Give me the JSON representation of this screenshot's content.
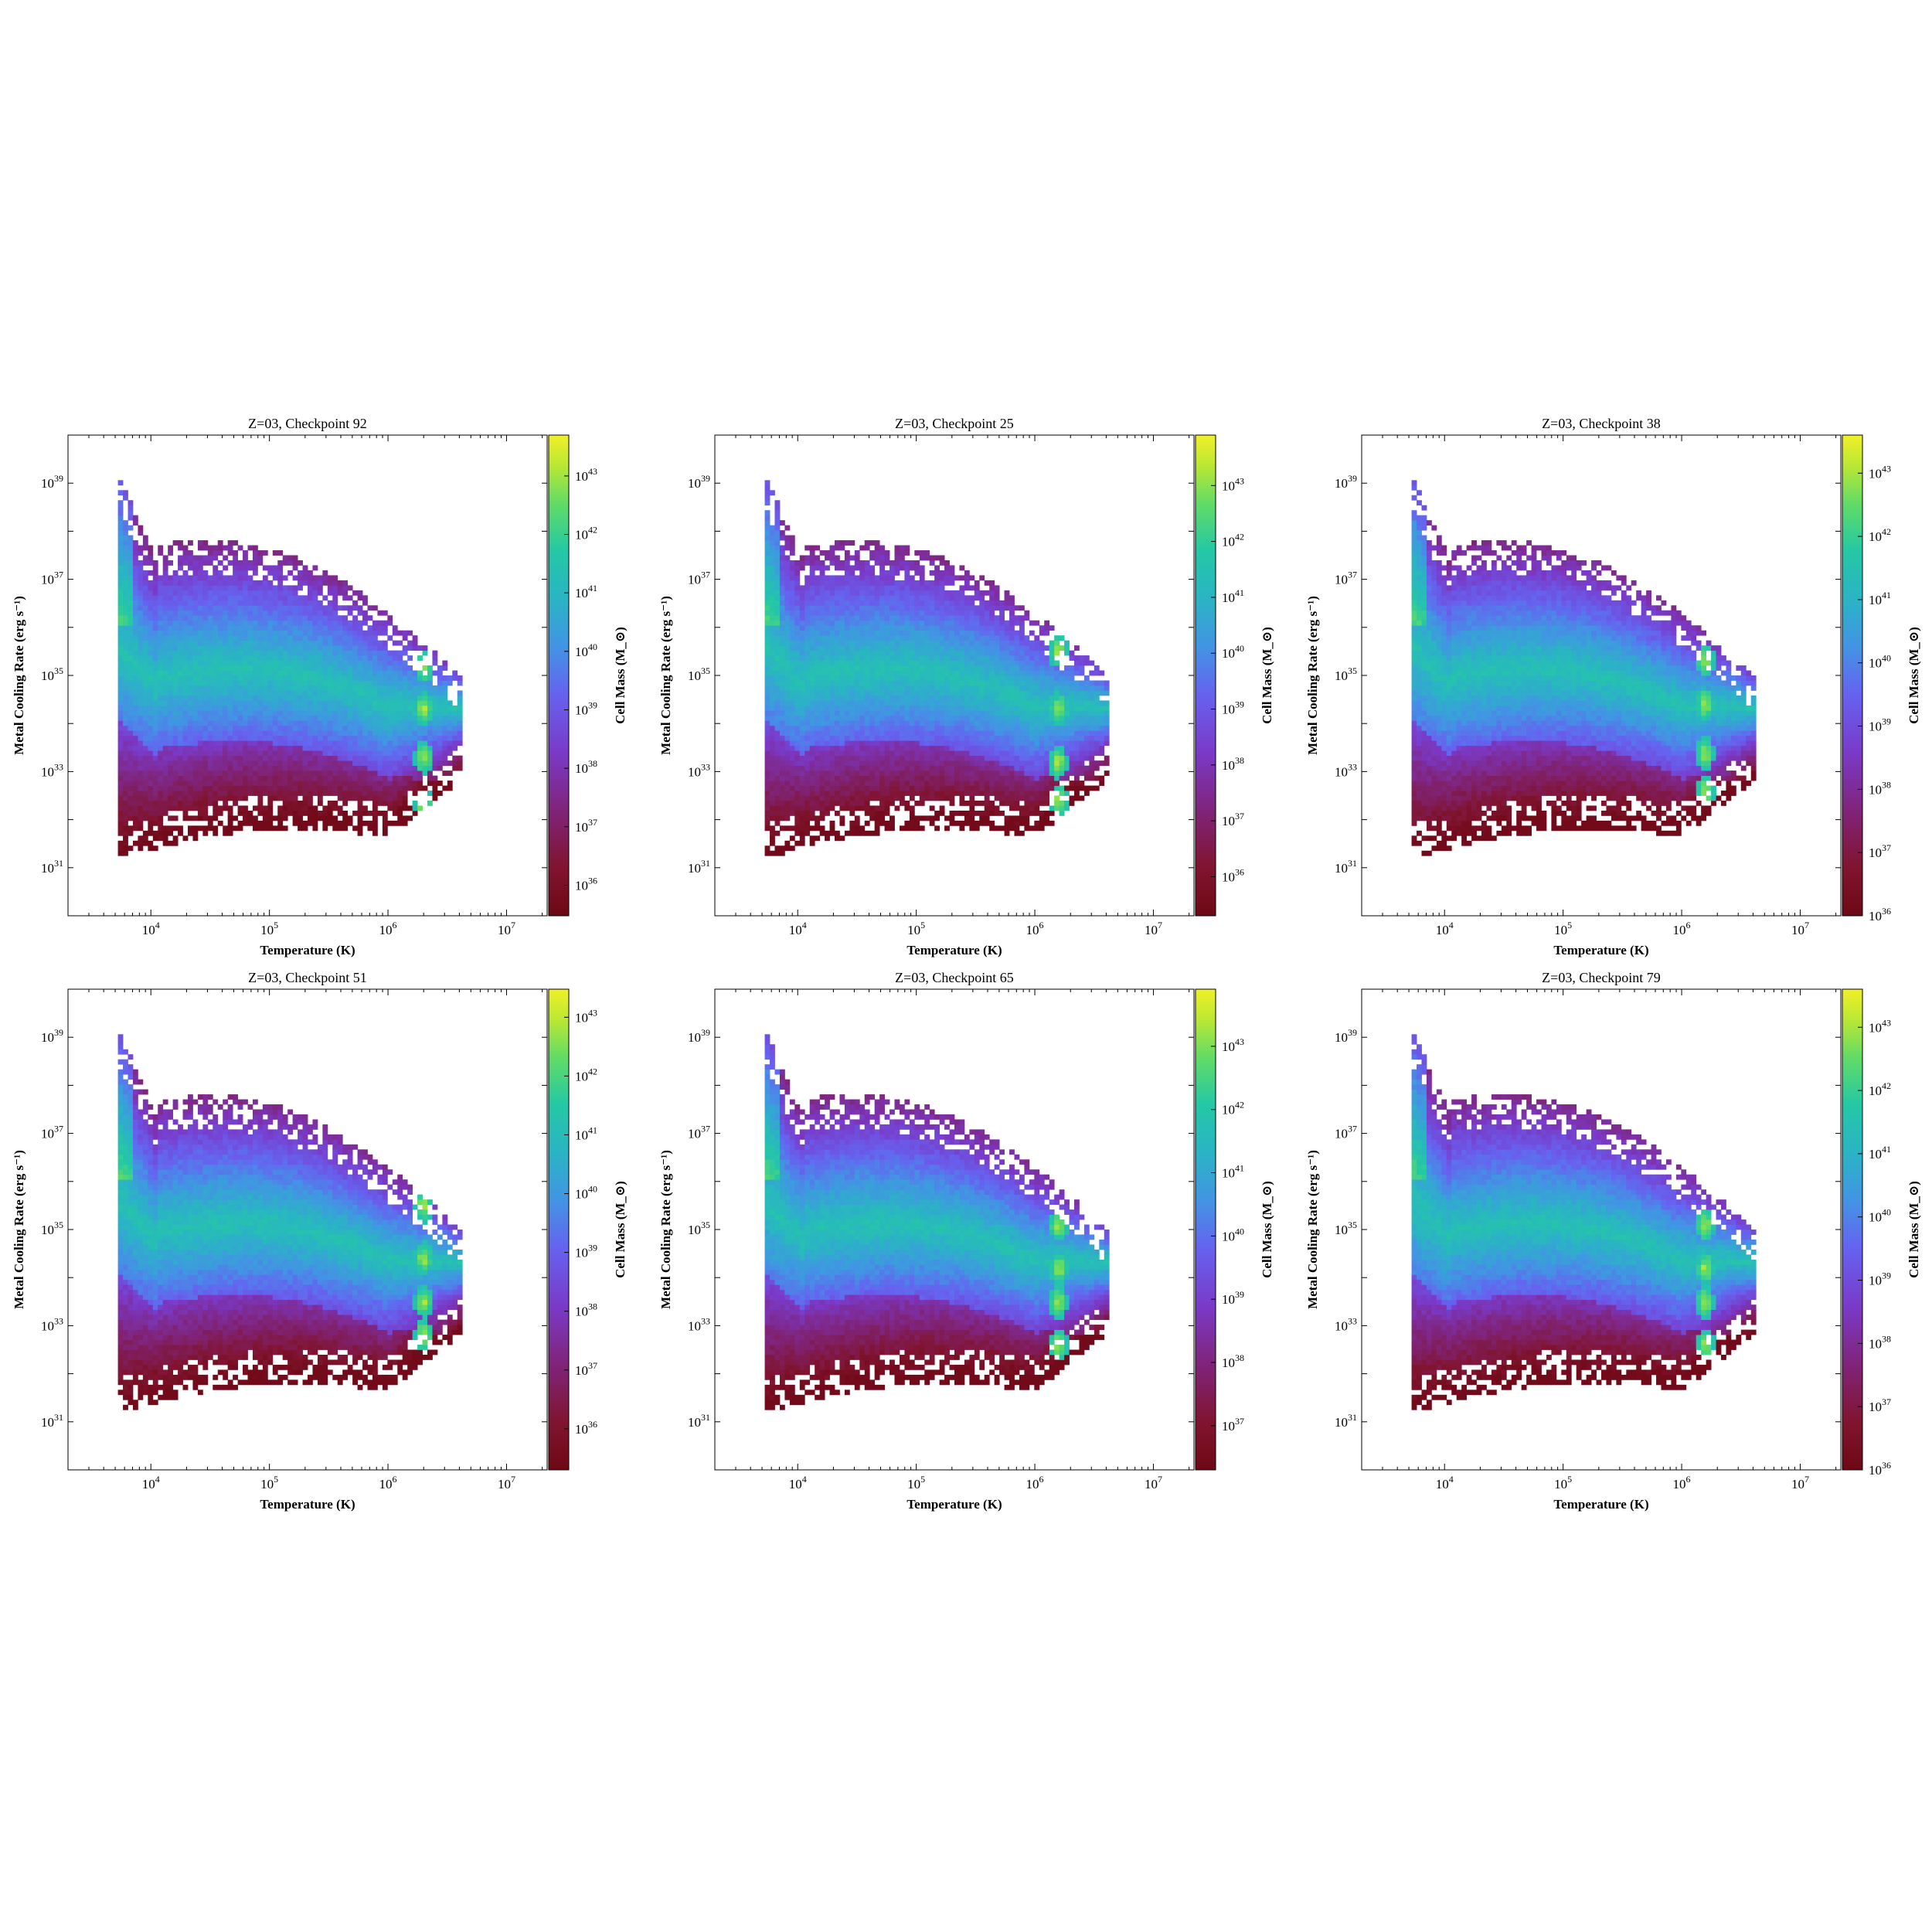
{
  "figure": {
    "xlabel": "Temperature (K)",
    "ylabel": "Metal Cooling Rate (erg s⁻¹)",
    "colorbar_label": "Cell Mass (M_⊙)"
  },
  "chart_data": [
    {
      "type": "heatmap",
      "title": "Z=03, Checkpoint 92",
      "xlabel": "Temperature (K)",
      "ylabel": "Metal Cooling Rate (erg s⁻¹)",
      "colorbar_label": "Cell Mass (M_⊙)",
      "x_scale": "log",
      "y_scale": "log",
      "xlim": [
        2000,
        22000000
      ],
      "ylim": [
        1e+30,
        1e+40
      ],
      "x_ticks": [
        10000,
        100000,
        1000000,
        10000000
      ],
      "y_ticks": [
        1e+31,
        1e+33,
        1e+35,
        1e+37,
        1e+39
      ],
      "colorbar_range": [
        3e+35,
        5e+43
      ],
      "colorbar_ticks": [
        1e+36,
        1e+37,
        1e+38,
        1e+39,
        1e+40,
        1e+41,
        1e+42,
        1e+43
      ],
      "colormap": "viridis extended into magenta/dark red",
      "blobs_at_logT_6_3": [
        35.2,
        34.3,
        33.3,
        32.3
      ]
    },
    {
      "type": "heatmap",
      "title": "Z=03, Checkpoint 25",
      "xlabel": "Temperature (K)",
      "ylabel": "Metal Cooling Rate (erg s⁻¹)",
      "colorbar_label": "Cell Mass (M_⊙)",
      "x_scale": "log",
      "y_scale": "log",
      "xlim": [
        2000,
        22000000
      ],
      "ylim": [
        1e+30,
        1e+40
      ],
      "x_ticks": [
        10000,
        100000,
        1000000,
        10000000
      ],
      "y_ticks": [
        1e+31,
        1e+33,
        1e+35,
        1e+37,
        1e+39
      ],
      "colorbar_range": [
        2e+35,
        8e+43
      ],
      "colorbar_ticks": [
        1e+36,
        1e+37,
        1e+38,
        1e+39,
        1e+40,
        1e+41,
        1e+42,
        1e+43
      ],
      "colormap": "viridis extended into magenta/dark red",
      "blobs_at_logT_6_2": [
        35.5,
        34.3,
        33.2,
        32.4
      ]
    },
    {
      "type": "heatmap",
      "title": "Z=03, Checkpoint 38",
      "xlabel": "Temperature (K)",
      "ylabel": "Metal Cooling Rate (erg s⁻¹)",
      "colorbar_label": "Cell Mass (M_⊙)",
      "x_scale": "log",
      "y_scale": "log",
      "xlim": [
        2000,
        22000000
      ],
      "ylim": [
        1e+30,
        1e+40
      ],
      "x_ticks": [
        10000,
        100000,
        1000000,
        10000000
      ],
      "y_ticks": [
        1e+31,
        1e+33,
        1e+35,
        1e+37,
        1e+39
      ],
      "colorbar_range": [
        1e+36,
        4e+43
      ],
      "colorbar_ticks": [
        1e+36,
        1e+37,
        1e+38,
        1e+39,
        1e+40,
        1e+41,
        1e+42,
        1e+43
      ],
      "colormap": "viridis extended into magenta/dark red",
      "blobs_at_logT_6_2": [
        35.3,
        34.4,
        33.4,
        32.6
      ]
    },
    {
      "type": "heatmap",
      "title": "Z=03, Checkpoint 51",
      "xlabel": "Temperature (K)",
      "ylabel": "Metal Cooling Rate (erg s⁻¹)",
      "colorbar_label": "Cell Mass (M_⊙)",
      "x_scale": "log",
      "y_scale": "log",
      "xlim": [
        2000,
        22000000
      ],
      "ylim": [
        1e+30,
        1e+40
      ],
      "x_ticks": [
        10000,
        100000,
        1000000,
        10000000
      ],
      "y_ticks": [
        1e+31,
        1e+33,
        1e+35,
        1e+37,
        1e+39
      ],
      "colorbar_range": [
        2e+35,
        3e+43
      ],
      "colorbar_ticks": [
        1e+36,
        1e+37,
        1e+38,
        1e+39,
        1e+40,
        1e+41,
        1e+42,
        1e+43
      ],
      "colormap": "viridis extended into magenta/dark red",
      "blobs_at_logT_6_3": [
        35.5,
        34.4,
        33.5,
        32.8
      ]
    },
    {
      "type": "heatmap",
      "title": "Z=03, Checkpoint 65",
      "xlabel": "Temperature (K)",
      "ylabel": "Metal Cooling Rate (erg s⁻¹)",
      "colorbar_label": "Cell Mass (M_⊙)",
      "x_scale": "log",
      "y_scale": "log",
      "xlim": [
        2000,
        22000000
      ],
      "ylim": [
        1e+30,
        1e+40
      ],
      "x_ticks": [
        10000,
        100000,
        1000000,
        10000000
      ],
      "y_ticks": [
        1e+31,
        1e+33,
        1e+35,
        1e+37,
        1e+39
      ],
      "colorbar_range": [
        2e+36,
        8e+43
      ],
      "colorbar_ticks": [
        1e+37,
        1e+38,
        1e+39,
        1e+40,
        1e+41,
        1e+42,
        1e+43
      ],
      "colormap": "viridis extended into magenta/dark red",
      "blobs_at_logT_6_2": [
        35.1,
        34.2,
        33.5,
        32.6
      ]
    },
    {
      "type": "heatmap",
      "title": "Z=03, Checkpoint 79",
      "xlabel": "Temperature (K)",
      "ylabel": "Metal Cooling Rate (erg s⁻¹)",
      "colorbar_label": "Cell Mass (M_⊙)",
      "x_scale": "log",
      "y_scale": "log",
      "xlim": [
        2000,
        22000000
      ],
      "ylim": [
        1e+30,
        1e+40
      ],
      "x_ticks": [
        10000,
        100000,
        1000000,
        10000000
      ],
      "y_ticks": [
        1e+31,
        1e+33,
        1e+35,
        1e+37,
        1e+39
      ],
      "colorbar_range": [
        1e+36,
        4e+43
      ],
      "colorbar_ticks": [
        1e+36,
        1e+37,
        1e+38,
        1e+39,
        1e+40,
        1e+41,
        1e+42,
        1e+43
      ],
      "colormap": "viridis extended into magenta/dark red",
      "blobs_at_logT_6_2": [
        35.1,
        34.2,
        33.5,
        32.6
      ]
    }
  ]
}
